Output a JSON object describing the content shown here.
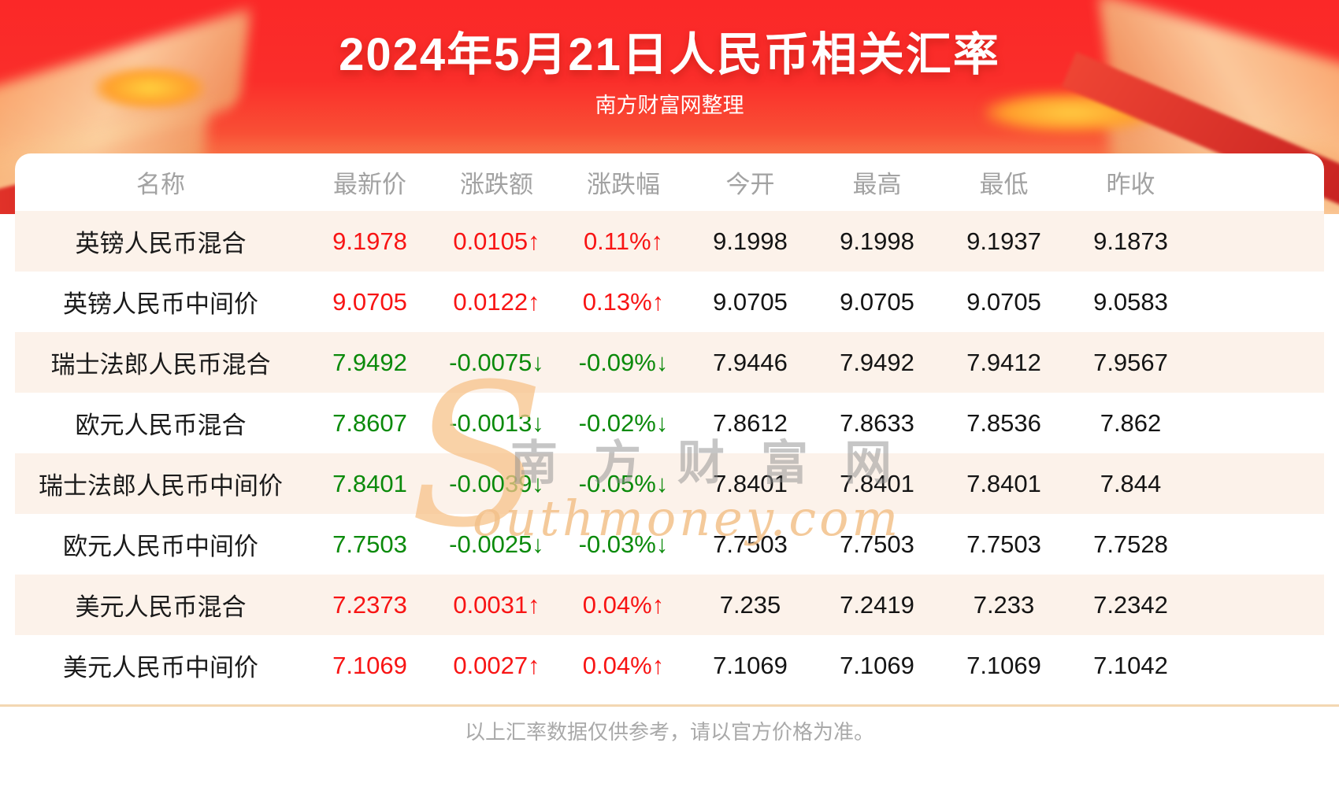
{
  "header": {
    "title": "2024年5月21日人民币相关汇率",
    "subtitle": "南方财富网整理"
  },
  "watermark": {
    "initial": "S",
    "cn": "南方财富网",
    "en": "outhmoney.com"
  },
  "chart_data": {
    "type": "table",
    "title": "2024年5月21日人民币相关汇率",
    "columns": [
      "名称",
      "最新价",
      "涨跌额",
      "涨跌幅",
      "今开",
      "最高",
      "最低",
      "昨收"
    ],
    "rows": [
      {
        "name": "英镑人民币混合",
        "latest": "9.1978",
        "change": "0.0105↑",
        "pct": "0.11%↑",
        "open": "9.1998",
        "high": "9.1998",
        "low": "9.1937",
        "prev": "9.1873",
        "trend": "up"
      },
      {
        "name": "英镑人民币中间价",
        "latest": "9.0705",
        "change": "0.0122↑",
        "pct": "0.13%↑",
        "open": "9.0705",
        "high": "9.0705",
        "low": "9.0705",
        "prev": "9.0583",
        "trend": "up"
      },
      {
        "name": "瑞士法郎人民币混合",
        "latest": "7.9492",
        "change": "-0.0075↓",
        "pct": "-0.09%↓",
        "open": "7.9446",
        "high": "7.9492",
        "low": "7.9412",
        "prev": "7.9567",
        "trend": "down"
      },
      {
        "name": "欧元人民币混合",
        "latest": "7.8607",
        "change": "-0.0013↓",
        "pct": "-0.02%↓",
        "open": "7.8612",
        "high": "7.8633",
        "low": "7.8536",
        "prev": "7.862",
        "trend": "down"
      },
      {
        "name": "瑞士法郎人民币中间价",
        "latest": "7.8401",
        "change": "-0.0039↓",
        "pct": "-0.05%↓",
        "open": "7.8401",
        "high": "7.8401",
        "low": "7.8401",
        "prev": "7.844",
        "trend": "down"
      },
      {
        "name": "欧元人民币中间价",
        "latest": "7.7503",
        "change": "-0.0025↓",
        "pct": "-0.03%↓",
        "open": "7.7503",
        "high": "7.7503",
        "low": "7.7503",
        "prev": "7.7528",
        "trend": "down"
      },
      {
        "name": "美元人民币混合",
        "latest": "7.2373",
        "change": "0.0031↑",
        "pct": "0.04%↑",
        "open": "7.235",
        "high": "7.2419",
        "low": "7.233",
        "prev": "7.2342",
        "trend": "up"
      },
      {
        "name": "美元人民币中间价",
        "latest": "7.1069",
        "change": "0.0027↑",
        "pct": "0.04%↑",
        "open": "7.1069",
        "high": "7.1069",
        "low": "7.1069",
        "prev": "7.1042",
        "trend": "up"
      }
    ]
  },
  "footer": {
    "disclaimer": "以上汇率数据仅供参考，请以官方价格为准。"
  },
  "colors": {
    "up": "#f81414",
    "down": "#0b8a0b",
    "banner_red": "#fa2b2b",
    "stripe": "#fcf2ea",
    "header_text": "#a2a2a2"
  }
}
